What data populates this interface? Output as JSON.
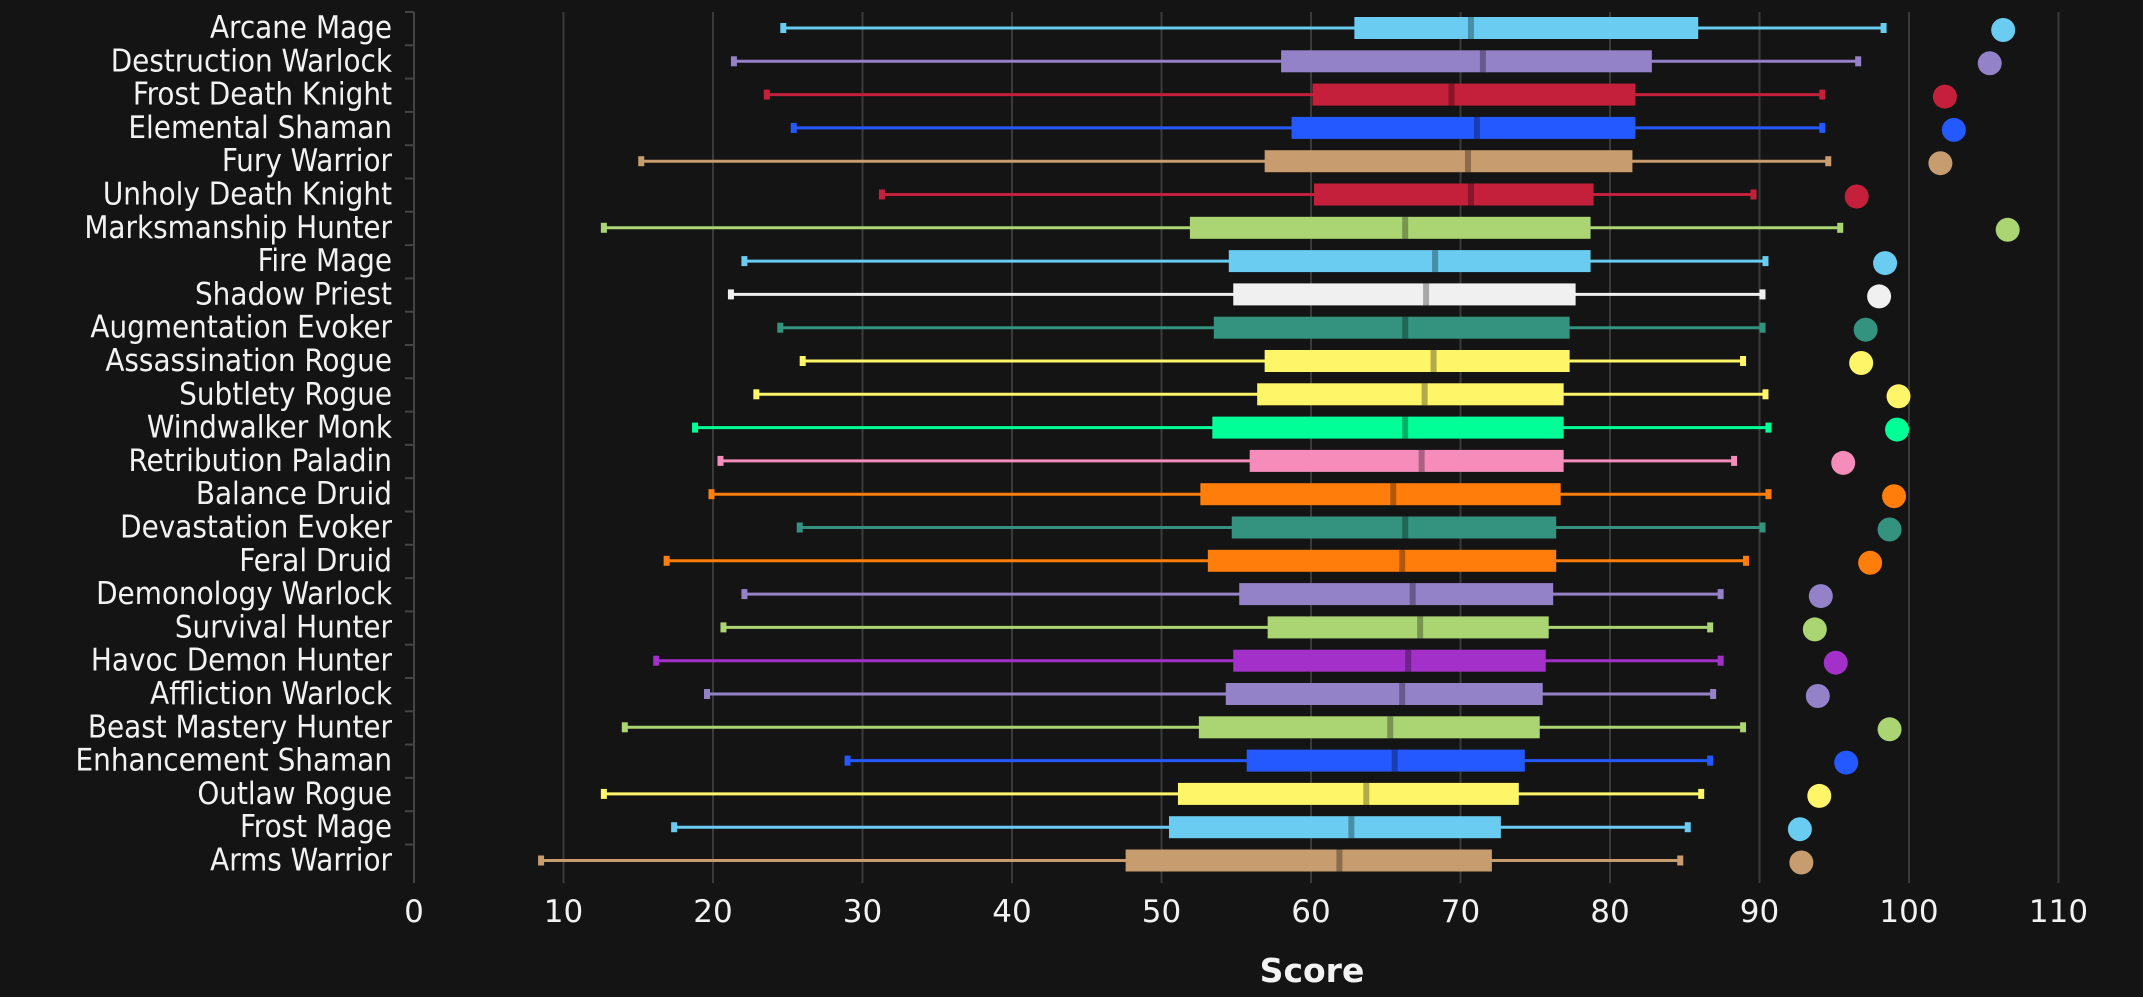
{
  "chart_data": {
    "type": "box",
    "title": "",
    "xlabel": "Score",
    "ylabel": "",
    "xlim": [
      0,
      112
    ],
    "xticks": [
      0,
      10,
      20,
      30,
      40,
      50,
      60,
      70,
      80,
      90,
      100,
      110
    ],
    "grid": "vertical",
    "legend": "none",
    "series": [
      {
        "name": "Arcane Mage",
        "color": "#69ccf0",
        "min": 24.7,
        "q1": 62.9,
        "median": 70.7,
        "q3": 85.9,
        "max": 98.3,
        "outlier": 106.3
      },
      {
        "name": "Destruction Warlock",
        "color": "#9482c9",
        "min": 21.4,
        "q1": 58.0,
        "median": 71.5,
        "q3": 82.8,
        "max": 96.6,
        "outlier": 105.4
      },
      {
        "name": "Frost Death Knight",
        "color": "#c41f3b",
        "min": 23.6,
        "q1": 60.1,
        "median": 69.4,
        "q3": 81.7,
        "max": 94.2,
        "outlier": 102.4
      },
      {
        "name": "Elemental Shaman",
        "color": "#2459ff",
        "min": 25.4,
        "q1": 58.7,
        "median": 71.1,
        "q3": 81.7,
        "max": 94.2,
        "outlier": 103.0
      },
      {
        "name": "Fury Warrior",
        "color": "#c79c6e",
        "min": 15.2,
        "q1": 56.9,
        "median": 70.5,
        "q3": 81.5,
        "max": 94.6,
        "outlier": 102.1
      },
      {
        "name": "Unholy Death Knight",
        "color": "#c41f3b",
        "min": 31.3,
        "q1": 60.2,
        "median": 70.7,
        "q3": 78.9,
        "max": 89.6,
        "outlier": 96.5
      },
      {
        "name": "Marksmanship Hunter",
        "color": "#abd473",
        "min": 12.7,
        "q1": 51.9,
        "median": 66.3,
        "q3": 78.7,
        "max": 95.4,
        "outlier": 106.6
      },
      {
        "name": "Fire Mage",
        "color": "#69ccf0",
        "min": 22.1,
        "q1": 54.5,
        "median": 68.3,
        "q3": 78.7,
        "max": 90.4,
        "outlier": 98.4
      },
      {
        "name": "Shadow Priest",
        "color": "#f0f0f0",
        "min": 21.2,
        "q1": 54.8,
        "median": 67.7,
        "q3": 77.7,
        "max": 90.2,
        "outlier": 98.0
      },
      {
        "name": "Augmentation Evoker",
        "color": "#33937f",
        "min": 24.5,
        "q1": 53.5,
        "median": 66.3,
        "q3": 77.3,
        "max": 90.2,
        "outlier": 97.1
      },
      {
        "name": "Assassination Rogue",
        "color": "#fff569",
        "min": 26.0,
        "q1": 56.9,
        "median": 68.2,
        "q3": 77.3,
        "max": 88.9,
        "outlier": 96.8
      },
      {
        "name": "Subtlety Rogue",
        "color": "#fff569",
        "min": 22.9,
        "q1": 56.4,
        "median": 67.6,
        "q3": 76.9,
        "max": 90.4,
        "outlier": 99.3
      },
      {
        "name": "Windwalker Monk",
        "color": "#00ff96",
        "min": 18.8,
        "q1": 53.4,
        "median": 66.3,
        "q3": 76.9,
        "max": 90.6,
        "outlier": 99.2
      },
      {
        "name": "Retribution Paladin",
        "color": "#f58cba",
        "min": 20.5,
        "q1": 55.9,
        "median": 67.4,
        "q3": 76.9,
        "max": 88.3,
        "outlier": 95.6
      },
      {
        "name": "Balance Druid",
        "color": "#ff7d0a",
        "min": 19.9,
        "q1": 52.6,
        "median": 65.5,
        "q3": 76.7,
        "max": 90.6,
        "outlier": 99.0
      },
      {
        "name": "Devastation Evoker",
        "color": "#33937f",
        "min": 25.8,
        "q1": 54.7,
        "median": 66.3,
        "q3": 76.4,
        "max": 90.2,
        "outlier": 98.7
      },
      {
        "name": "Feral Druid",
        "color": "#ff7d0a",
        "min": 16.9,
        "q1": 53.1,
        "median": 66.1,
        "q3": 76.4,
        "max": 89.1,
        "outlier": 97.4
      },
      {
        "name": "Demonology Warlock",
        "color": "#9482c9",
        "min": 22.1,
        "q1": 55.2,
        "median": 66.8,
        "q3": 76.2,
        "max": 87.4,
        "outlier": 94.1
      },
      {
        "name": "Survival Hunter",
        "color": "#abd473",
        "min": 20.7,
        "q1": 57.1,
        "median": 67.3,
        "q3": 75.9,
        "max": 86.7,
        "outlier": 93.7
      },
      {
        "name": "Havoc Demon Hunter",
        "color": "#a330c9",
        "min": 16.2,
        "q1": 54.8,
        "median": 66.5,
        "q3": 75.7,
        "max": 87.4,
        "outlier": 95.1
      },
      {
        "name": "Affliction Warlock",
        "color": "#9482c9",
        "min": 19.6,
        "q1": 54.3,
        "median": 66.1,
        "q3": 75.5,
        "max": 86.9,
        "outlier": 93.9
      },
      {
        "name": "Beast Mastery Hunter",
        "color": "#abd473",
        "min": 14.1,
        "q1": 52.5,
        "median": 65.3,
        "q3": 75.3,
        "max": 88.9,
        "outlier": 98.7
      },
      {
        "name": "Enhancement Shaman",
        "color": "#2459ff",
        "min": 29.0,
        "q1": 55.7,
        "median": 65.6,
        "q3": 74.3,
        "max": 86.7,
        "outlier": 95.8
      },
      {
        "name": "Outlaw Rogue",
        "color": "#fff569",
        "min": 12.7,
        "q1": 51.1,
        "median": 63.7,
        "q3": 73.9,
        "max": 86.1,
        "outlier": 94.0
      },
      {
        "name": "Frost Mage",
        "color": "#69ccf0",
        "min": 17.4,
        "q1": 50.5,
        "median": 62.7,
        "q3": 72.7,
        "max": 85.2,
        "outlier": 92.7
      },
      {
        "name": "Arms Warrior",
        "color": "#c79c6e",
        "min": 8.5,
        "q1": 47.6,
        "median": 61.9,
        "q3": 72.1,
        "max": 84.7,
        "outlier": 92.8
      }
    ]
  }
}
